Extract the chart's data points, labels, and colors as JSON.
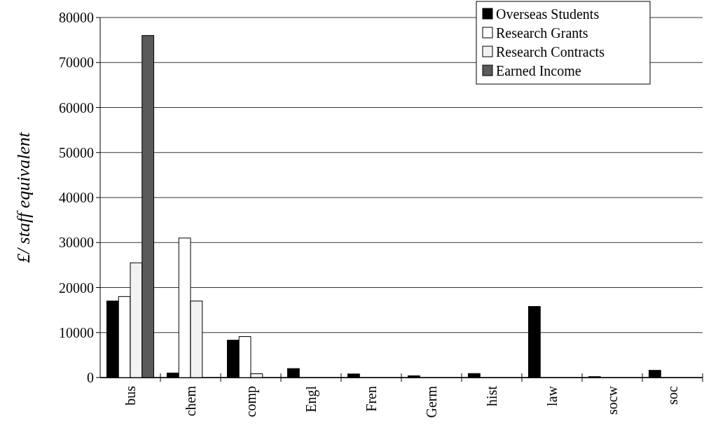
{
  "chart_data": {
    "type": "bar",
    "ylabel": "£/ staff equivalent",
    "categories": [
      "bus",
      "chem",
      "comp",
      "Engl",
      "Fren",
      "Germ",
      "hist",
      "law",
      "socw",
      "soc"
    ],
    "series": [
      {
        "name": "Overseas Students",
        "color": "#000000",
        "values": [
          17000,
          1000,
          8300,
          2000,
          800,
          400,
          900,
          15800,
          200,
          1600
        ]
      },
      {
        "name": "Research Grants",
        "color": "#ffffff",
        "values": [
          18000,
          31000,
          9100,
          0,
          0,
          0,
          0,
          0,
          0,
          0
        ]
      },
      {
        "name": "Research  Contracts",
        "color": "#f2f2f2",
        "values": [
          25500,
          17000,
          850,
          0,
          0,
          0,
          0,
          0,
          0,
          0
        ]
      },
      {
        "name": "Earned  Income",
        "color": "#5a5a5a",
        "values": [
          76000,
          0,
          0,
          0,
          0,
          0,
          0,
          0,
          0,
          0
        ]
      }
    ],
    "ylim": [
      0,
      80000
    ],
    "yticks": [
      0,
      10000,
      20000,
      30000,
      40000,
      50000,
      60000,
      70000,
      80000
    ],
    "grid": "y",
    "legend": "top right"
  }
}
